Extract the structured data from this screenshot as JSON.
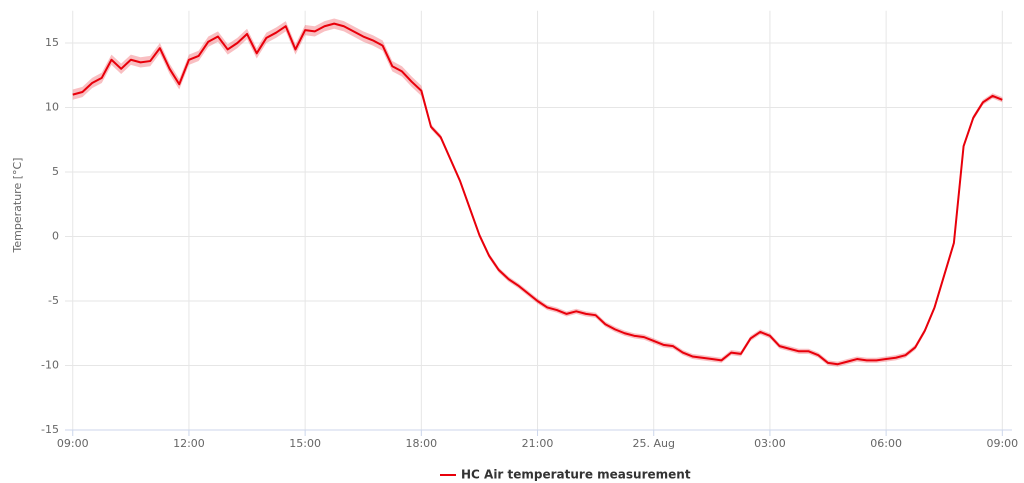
{
  "chart_data": {
    "type": "line",
    "y_label": "Temperature [°C]",
    "x": [
      0,
      0.25,
      0.5,
      0.75,
      1,
      1.25,
      1.5,
      1.75,
      2,
      2.25,
      2.5,
      2.75,
      3,
      3.25,
      3.5,
      3.75,
      4,
      4.25,
      4.5,
      4.75,
      5,
      5.25,
      5.5,
      5.75,
      6,
      6.25,
      6.5,
      6.75,
      7,
      7.25,
      7.5,
      7.75,
      8,
      8.25,
      8.5,
      8.75,
      9,
      9.25,
      9.5,
      9.75,
      10,
      10.25,
      10.5,
      10.75,
      11,
      11.25,
      11.5,
      11.75,
      12,
      12.25,
      12.5,
      12.75,
      13,
      13.25,
      13.5,
      13.75,
      14,
      14.25,
      14.5,
      14.75,
      15,
      15.25,
      15.5,
      15.75,
      16,
      16.25,
      16.5,
      16.75,
      17,
      17.25,
      17.5,
      17.75,
      18,
      18.25,
      18.5,
      18.75,
      19,
      19.25,
      19.5,
      19.75,
      20,
      20.25,
      20.5,
      20.75,
      21,
      21.25,
      21.5,
      21.75,
      22,
      22.25,
      22.5,
      22.75,
      23,
      23.25,
      23.5,
      23.75,
      24
    ],
    "series": [
      {
        "name": "HC Air temperature measurement",
        "color": "#e8000b",
        "band_color": "rgba(232,0,11,0.25)",
        "values": [
          11.0,
          11.2,
          11.9,
          12.3,
          13.7,
          13.0,
          13.7,
          13.5,
          13.6,
          14.6,
          13.0,
          11.8,
          13.7,
          14.0,
          15.1,
          15.5,
          14.5,
          15.0,
          15.7,
          14.2,
          15.4,
          15.8,
          16.3,
          14.5,
          16.0,
          15.9,
          16.3,
          16.5,
          16.3,
          15.9,
          15.5,
          15.2,
          14.8,
          13.2,
          12.8,
          12.0,
          11.3,
          8.5,
          7.7,
          6.0,
          4.3,
          2.2,
          0.1,
          -1.5,
          -2.6,
          -3.3,
          -3.8,
          -4.4,
          -5.0,
          -5.5,
          -5.7,
          -6.0,
          -5.8,
          -6.0,
          -6.1,
          -6.8,
          -7.2,
          -7.5,
          -7.7,
          -7.8,
          -8.1,
          -8.4,
          -8.5,
          -9.0,
          -9.3,
          -9.4,
          -9.5,
          -9.6,
          -9.0,
          -9.1,
          -7.9,
          -7.4,
          -7.7,
          -8.5,
          -8.7,
          -8.9,
          -8.9,
          -9.2,
          -9.8,
          -9.9,
          -9.7,
          -9.5,
          -9.6,
          -9.6,
          -9.5,
          -9.4,
          -9.2,
          -8.6,
          -7.3,
          -5.5,
          -3.0,
          -0.5,
          7.0,
          9.2,
          10.4,
          10.9,
          10.6
        ],
        "low": [
          10.6,
          10.8,
          11.5,
          11.9,
          13.3,
          12.6,
          13.3,
          13.1,
          13.2,
          14.2,
          12.6,
          11.4,
          13.3,
          13.6,
          14.7,
          15.1,
          14.1,
          14.6,
          15.3,
          13.8,
          15.0,
          15.4,
          15.9,
          14.1,
          15.6,
          15.5,
          15.9,
          16.1,
          15.9,
          15.5,
          15.1,
          14.8,
          14.4,
          12.8,
          12.4,
          11.6,
          10.9,
          8.3,
          7.5,
          5.8,
          4.1,
          2.0,
          -0.1,
          -1.7,
          -2.8,
          -3.5,
          -4.0,
          -4.6,
          -5.2,
          -5.7,
          -5.9,
          -6.2,
          -6.0,
          -6.2,
          -6.3,
          -7.0,
          -7.4,
          -7.7,
          -7.9,
          -8.0,
          -8.3,
          -8.6,
          -8.7,
          -9.2,
          -9.5,
          -9.6,
          -9.7,
          -9.8,
          -9.2,
          -9.3,
          -8.1,
          -7.6,
          -7.9,
          -8.7,
          -8.9,
          -9.1,
          -9.1,
          -9.4,
          -10.0,
          -10.1,
          -9.9,
          -9.7,
          -9.8,
          -9.8,
          -9.7,
          -9.6,
          -9.4,
          -8.8,
          -7.5,
          -5.7,
          -3.2,
          -0.7,
          6.8,
          9.0,
          10.2,
          10.7,
          10.4
        ],
        "high": [
          11.4,
          11.6,
          12.3,
          12.7,
          14.1,
          13.4,
          14.1,
          13.9,
          14.0,
          15.0,
          13.4,
          12.2,
          14.1,
          14.4,
          15.5,
          15.9,
          14.9,
          15.4,
          16.1,
          14.6,
          15.8,
          16.2,
          16.7,
          14.9,
          16.4,
          16.3,
          16.7,
          16.9,
          16.7,
          16.3,
          15.9,
          15.6,
          15.2,
          13.6,
          13.2,
          12.4,
          11.7,
          8.7,
          7.9,
          6.2,
          4.5,
          2.4,
          0.3,
          -1.3,
          -2.4,
          -3.1,
          -3.6,
          -4.2,
          -4.8,
          -5.3,
          -5.5,
          -5.8,
          -5.6,
          -5.8,
          -5.9,
          -6.6,
          -7.0,
          -7.3,
          -7.5,
          -7.6,
          -7.9,
          -8.2,
          -8.3,
          -8.8,
          -9.1,
          -9.2,
          -9.3,
          -9.4,
          -8.8,
          -8.9,
          -7.7,
          -7.2,
          -7.5,
          -8.3,
          -8.5,
          -8.7,
          -8.7,
          -9.0,
          -9.6,
          -9.7,
          -9.5,
          -9.3,
          -9.4,
          -9.4,
          -9.3,
          -9.2,
          -9.0,
          -8.4,
          -7.1,
          -5.3,
          -2.8,
          -0.3,
          7.2,
          9.4,
          10.6,
          11.1,
          10.8
        ]
      }
    ],
    "xlim": [
      -0.2,
      24.25
    ],
    "xticks": [
      {
        "value": 0,
        "label": "09:00"
      },
      {
        "value": 3,
        "label": "12:00"
      },
      {
        "value": 6,
        "label": "15:00"
      },
      {
        "value": 9,
        "label": "18:00"
      },
      {
        "value": 12,
        "label": "21:00"
      },
      {
        "value": 15,
        "label": "25. Aug"
      },
      {
        "value": 18,
        "label": "03:00"
      },
      {
        "value": 21,
        "label": "06:00"
      },
      {
        "value": 24,
        "label": "09:00"
      }
    ],
    "ylim": [
      -15,
      17.5
    ],
    "yticks": [
      -15,
      -10,
      -5,
      0,
      5,
      10,
      15
    ],
    "grid": true,
    "legend": "bottom"
  }
}
